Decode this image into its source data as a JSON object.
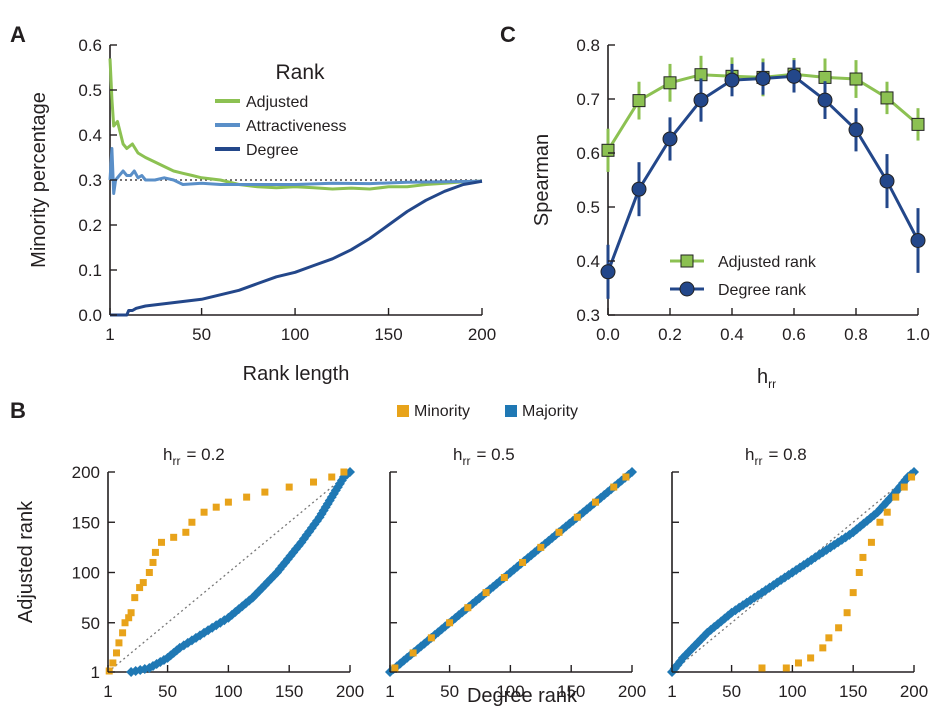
{
  "colors": {
    "adjusted": "#8cc152",
    "attractiveness": "#5a8fc8",
    "degree": "#23478a",
    "minority": "#e8a31a",
    "majority": "#1f78b4",
    "adjusted_rank": "#8cc152",
    "degree_rank": "#23478a"
  },
  "chart_data": [
    {
      "panel": "A",
      "type": "line",
      "xlabel": "Rank length",
      "ylabel": "Minority percentage",
      "xlim": [
        1,
        200
      ],
      "ylim": [
        0.0,
        0.6
      ],
      "xticks": [
        "1",
        "50",
        "100",
        "150",
        "200"
      ],
      "yticks": [
        "0.0",
        "0.1",
        "0.2",
        "0.3",
        "0.4",
        "0.5",
        "0.6"
      ],
      "legend_title": "Rank",
      "legend_position": "top-right",
      "reference_line": 0.3,
      "series": [
        {
          "name": "Adjusted",
          "color_key": "adjusted",
          "x": [
            1,
            2,
            3,
            5,
            8,
            10,
            13,
            16,
            20,
            25,
            30,
            35,
            40,
            45,
            50,
            60,
            70,
            80,
            90,
            100,
            110,
            120,
            130,
            140,
            150,
            160,
            170,
            180,
            190,
            200
          ],
          "y": [
            0.57,
            0.48,
            0.42,
            0.43,
            0.38,
            0.37,
            0.38,
            0.36,
            0.35,
            0.34,
            0.33,
            0.32,
            0.315,
            0.31,
            0.305,
            0.3,
            0.29,
            0.285,
            0.283,
            0.285,
            0.283,
            0.28,
            0.282,
            0.28,
            0.285,
            0.285,
            0.29,
            0.293,
            0.296,
            0.297
          ]
        },
        {
          "name": "Attractiveness",
          "color_key": "attractiveness",
          "x": [
            1,
            2,
            3,
            4,
            6,
            8,
            10,
            12,
            14,
            16,
            18,
            20,
            25,
            30,
            35,
            40,
            50,
            60,
            80,
            100,
            120,
            140,
            160,
            180,
            200
          ],
          "y": [
            0.3,
            0.37,
            0.27,
            0.3,
            0.31,
            0.32,
            0.31,
            0.31,
            0.32,
            0.305,
            0.31,
            0.3,
            0.3,
            0.305,
            0.3,
            0.29,
            0.293,
            0.29,
            0.29,
            0.29,
            0.293,
            0.292,
            0.295,
            0.296,
            0.297
          ]
        },
        {
          "name": "Degree",
          "color_key": "degree",
          "x": [
            1,
            5,
            10,
            11,
            13,
            15,
            20,
            30,
            40,
            50,
            60,
            70,
            80,
            90,
            100,
            110,
            120,
            130,
            140,
            150,
            160,
            170,
            180,
            190,
            200
          ],
          "y": [
            0.0,
            0.0,
            0.0,
            0.01,
            0.01,
            0.015,
            0.02,
            0.025,
            0.03,
            0.035,
            0.045,
            0.055,
            0.07,
            0.085,
            0.095,
            0.11,
            0.125,
            0.145,
            0.17,
            0.2,
            0.23,
            0.255,
            0.275,
            0.29,
            0.297
          ]
        }
      ]
    },
    {
      "panel": "C",
      "type": "line",
      "xlabel": "h",
      "xlabel_sub": "rr",
      "ylabel": "Spearman",
      "xlim": [
        0.0,
        1.0
      ],
      "ylim": [
        0.3,
        0.8
      ],
      "xticks": [
        "0.0",
        "0.2",
        "0.4",
        "0.6",
        "0.8",
        "1.0"
      ],
      "yticks": [
        "0.3",
        "0.4",
        "0.5",
        "0.6",
        "0.7",
        "0.8"
      ],
      "legend_position": "bottom-left",
      "x": [
        0.0,
        0.1,
        0.2,
        0.3,
        0.4,
        0.5,
        0.6,
        0.7,
        0.8,
        0.9,
        1.0
      ],
      "series": [
        {
          "name": "Adjusted rank",
          "color_key": "adjusted_rank",
          "marker": "square",
          "values": [
            0.605,
            0.697,
            0.73,
            0.745,
            0.742,
            0.74,
            0.746,
            0.74,
            0.737,
            0.702,
            0.653
          ],
          "error": [
            0.04,
            0.035,
            0.035,
            0.035,
            0.035,
            0.035,
            0.03,
            0.035,
            0.035,
            0.03,
            0.03
          ]
        },
        {
          "name": "Degree rank",
          "color_key": "degree_rank",
          "marker": "circle",
          "values": [
            0.38,
            0.533,
            0.626,
            0.698,
            0.735,
            0.738,
            0.742,
            0.698,
            0.643,
            0.548,
            0.438
          ],
          "error": [
            0.05,
            0.05,
            0.04,
            0.04,
            0.03,
            0.03,
            0.03,
            0.035,
            0.04,
            0.05,
            0.06
          ]
        }
      ]
    },
    {
      "panel": "B",
      "type": "scatter",
      "xlabel": "Degree rank",
      "ylabel": "Adjusted rank",
      "legend": [
        {
          "name": "Minority",
          "color_key": "minority"
        },
        {
          "name": "Majority",
          "color_key": "majority"
        }
      ],
      "legend_position": "top-center",
      "xticks": [
        "1",
        "50",
        "100",
        "150",
        "200"
      ],
      "yticks": [
        "1",
        "50",
        "100",
        "150",
        "200"
      ],
      "xlim": [
        1,
        200
      ],
      "ylim": [
        1,
        200
      ],
      "subplots": [
        {
          "title": "h",
          "title_sub": "rr",
          "title_value": "= 0.2",
          "minority": [
            [
              2,
              2
            ],
            [
              5,
              10
            ],
            [
              8,
              20
            ],
            [
              10,
              30
            ],
            [
              13,
              40
            ],
            [
              15,
              50
            ],
            [
              18,
              55
            ],
            [
              20,
              60
            ],
            [
              23,
              75
            ],
            [
              27,
              85
            ],
            [
              30,
              90
            ],
            [
              35,
              100
            ],
            [
              38,
              110
            ],
            [
              40,
              120
            ],
            [
              45,
              130
            ],
            [
              55,
              135
            ],
            [
              65,
              140
            ],
            [
              70,
              150
            ],
            [
              80,
              160
            ],
            [
              90,
              165
            ],
            [
              100,
              170
            ],
            [
              115,
              175
            ],
            [
              130,
              180
            ],
            [
              150,
              185
            ],
            [
              170,
              190
            ],
            [
              185,
              195
            ],
            [
              195,
              200
            ]
          ],
          "majority": [
            [
              20,
              1
            ],
            [
              35,
              5
            ],
            [
              50,
              15
            ],
            [
              60,
              25
            ],
            [
              80,
              40
            ],
            [
              100,
              55
            ],
            [
              120,
              75
            ],
            [
              140,
              100
            ],
            [
              160,
              130
            ],
            [
              175,
              155
            ],
            [
              185,
              175
            ],
            [
              195,
              195
            ],
            [
              200,
              200
            ]
          ]
        },
        {
          "title": "h",
          "title_sub": "rr",
          "title_value": "= 0.5",
          "minority": [
            [
              5,
              5
            ],
            [
              20,
              20
            ],
            [
              35,
              35
            ],
            [
              50,
              50
            ],
            [
              65,
              65
            ],
            [
              80,
              80
            ],
            [
              95,
              95
            ],
            [
              110,
              110
            ],
            [
              125,
              125
            ],
            [
              140,
              140
            ],
            [
              155,
              155
            ],
            [
              170,
              170
            ],
            [
              185,
              185
            ],
            [
              195,
              195
            ]
          ],
          "majority": [
            [
              1,
              1
            ],
            [
              100,
              100
            ],
            [
              200,
              200
            ]
          ]
        },
        {
          "title": "h",
          "title_sub": "rr",
          "title_value": "= 0.8",
          "minority": [
            [
              75,
              5
            ],
            [
              95,
              5
            ],
            [
              105,
              10
            ],
            [
              115,
              15
            ],
            [
              125,
              25
            ],
            [
              130,
              35
            ],
            [
              138,
              45
            ],
            [
              145,
              60
            ],
            [
              150,
              80
            ],
            [
              155,
              100
            ],
            [
              158,
              115
            ],
            [
              165,
              130
            ],
            [
              172,
              150
            ],
            [
              178,
              160
            ],
            [
              185,
              175
            ],
            [
              192,
              185
            ],
            [
              198,
              195
            ]
          ],
          "majority": [
            [
              1,
              1
            ],
            [
              10,
              15
            ],
            [
              30,
              40
            ],
            [
              50,
              60
            ],
            [
              75,
              80
            ],
            [
              100,
              100
            ],
            [
              125,
              120
            ],
            [
              150,
              140
            ],
            [
              170,
              160
            ],
            [
              185,
              180
            ],
            [
              195,
              195
            ],
            [
              200,
              200
            ]
          ]
        }
      ]
    }
  ],
  "labels": {
    "panel_a": "A",
    "panel_b": "B",
    "panel_c": "C",
    "a_ylabel": "Minority percentage",
    "a_xlabel": "Rank length",
    "a_legend_title": "Rank",
    "a_leg1": "Adjusted",
    "a_leg2": "Attractiveness",
    "a_leg3": "Degree",
    "c_ylabel": "Spearman",
    "c_xlabel": "h",
    "c_xlabel_sub": "rr",
    "c_leg1": "Adjusted rank",
    "c_leg2": "Degree rank",
    "b_leg1": "Minority",
    "b_leg2": "Majority",
    "b_ylabel": "Adjusted rank",
    "b_xlabel": "Degree rank",
    "b1_title": "h",
    "b1_sub": "rr",
    "b1_val": "= 0.2",
    "b2_title": "h",
    "b2_sub": "rr",
    "b2_val": "= 0.5",
    "b3_title": "h",
    "b3_sub": "rr",
    "b3_val": "= 0.8"
  }
}
